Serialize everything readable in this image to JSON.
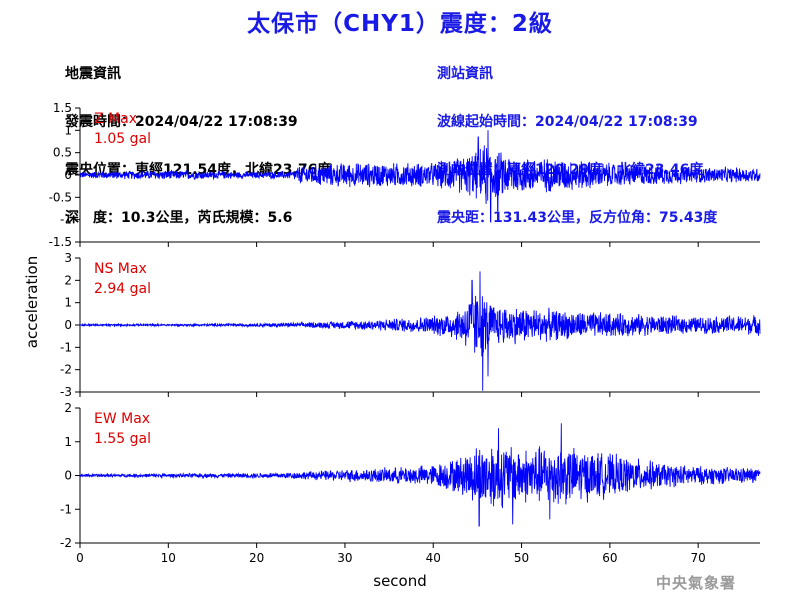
{
  "page": {
    "title": "太保市（CHY1）震度：2級",
    "watermark": "中央氣象署"
  },
  "quake_info": {
    "heading": "地震資訊",
    "origin_time": "發震時間：2024/04/22 17:08:39",
    "epicenter": "震央位置：東經121.54度，北緯23.76度",
    "depth_magnitude": "深　度：10.3公里，芮氏規模：5.6"
  },
  "station_info": {
    "heading": "測站資訊",
    "wave_start": "波線起始時間：2024/04/22 17:08:39",
    "station_location": "測站位置：東經120.29度，北緯23.46度",
    "distance_azimuth": "震央距：131.43公里，反方位角：75.43度"
  },
  "colors": {
    "trace": "#0000ff",
    "peak_label": "#e00000",
    "title": "#1a1ae6",
    "axis": "#000000"
  },
  "chart_data": [
    {
      "type": "line",
      "component": "Z",
      "peak_label": "Z Max",
      "peak_value": "1.05 gal",
      "ylim": [
        -1.5,
        1.5
      ],
      "yticks": [
        -1.5,
        -1,
        -0.5,
        0,
        0.5,
        1,
        1.5
      ],
      "ytick_labels": [
        "-1.5",
        "-1",
        "-0.5",
        "0",
        "0.5",
        "1",
        "1.5"
      ],
      "envelope": {
        "t": [
          0,
          5,
          10,
          15,
          20,
          24,
          25,
          30,
          35,
          40,
          43,
          45,
          46,
          47,
          50,
          55,
          60,
          65,
          70,
          77
        ],
        "amp": [
          0.08,
          0.1,
          0.12,
          0.1,
          0.08,
          0.1,
          0.25,
          0.3,
          0.3,
          0.3,
          0.45,
          0.6,
          0.8,
          0.6,
          0.45,
          0.4,
          0.3,
          0.25,
          0.2,
          0.18
        ]
      },
      "spikes": [
        {
          "t": 46.2,
          "y": 1.0
        },
        {
          "t": 46.5,
          "y": -1.05
        },
        {
          "t": 45.1,
          "y": 0.85
        },
        {
          "t": 47.3,
          "y": -0.8
        }
      ]
    },
    {
      "type": "line",
      "component": "NS",
      "peak_label": "NS Max",
      "peak_value": "2.94 gal",
      "ylim": [
        -3,
        3
      ],
      "yticks": [
        -3,
        -2,
        -1,
        0,
        1,
        2,
        3
      ],
      "ytick_labels": [
        "-3",
        "-2",
        "-1",
        "0",
        "1",
        "2",
        "3"
      ],
      "envelope": {
        "t": [
          0,
          10,
          20,
          25,
          30,
          35,
          40,
          43,
          44,
          45,
          46,
          47,
          50,
          55,
          60,
          65,
          70,
          77
        ],
        "amp": [
          0.05,
          0.05,
          0.08,
          0.12,
          0.2,
          0.3,
          0.45,
          0.8,
          1.4,
          1.8,
          1.4,
          1.0,
          0.9,
          0.7,
          0.6,
          0.5,
          0.4,
          0.5
        ]
      },
      "spikes": [
        {
          "t": 45.6,
          "y": -2.94
        },
        {
          "t": 45.3,
          "y": 2.4
        },
        {
          "t": 44.4,
          "y": 2.0
        },
        {
          "t": 46.2,
          "y": -2.3
        }
      ]
    },
    {
      "type": "line",
      "component": "EW",
      "peak_label": "EW Max",
      "peak_value": "1.55 gal",
      "ylim": [
        -2,
        2
      ],
      "yticks": [
        -2,
        -1,
        0,
        1,
        2
      ],
      "ytick_labels": [
        "-2",
        "-1",
        "0",
        "1",
        "2"
      ],
      "envelope": {
        "t": [
          0,
          10,
          20,
          25,
          30,
          35,
          40,
          43,
          45,
          47,
          50,
          54,
          58,
          62,
          66,
          70,
          77
        ],
        "amp": [
          0.05,
          0.06,
          0.08,
          0.12,
          0.2,
          0.25,
          0.35,
          0.6,
          1.0,
          1.1,
          0.9,
          1.0,
          0.8,
          0.6,
          0.4,
          0.3,
          0.25
        ]
      },
      "spikes": [
        {
          "t": 54.5,
          "y": 1.55
        },
        {
          "t": 45.2,
          "y": -1.5
        },
        {
          "t": 47.4,
          "y": 1.4
        },
        {
          "t": 49.0,
          "y": -1.45
        },
        {
          "t": 53.2,
          "y": -1.3
        }
      ]
    }
  ],
  "x_axis": {
    "label": "second",
    "xlim": [
      0,
      77
    ],
    "ticks": [
      0,
      10,
      20,
      30,
      40,
      50,
      60,
      70
    ],
    "tick_labels": [
      "0",
      "10",
      "20",
      "30",
      "40",
      "50",
      "60",
      "70"
    ]
  },
  "y_axis": {
    "label": "acceleration"
  }
}
